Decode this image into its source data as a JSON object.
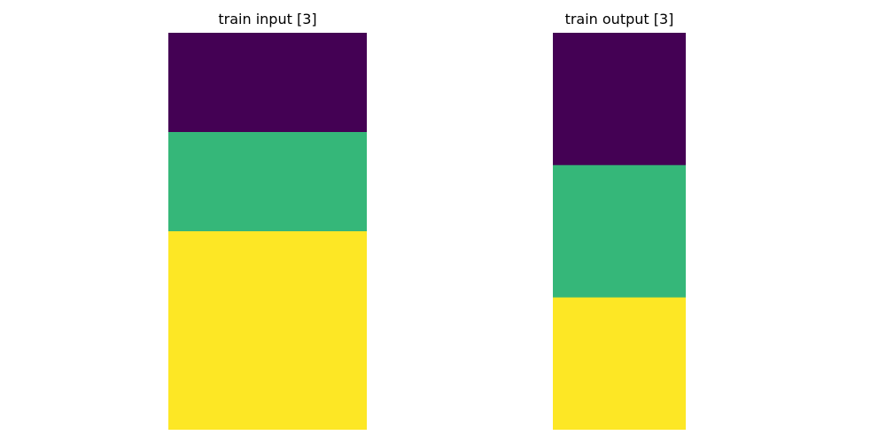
{
  "chart_data": [
    {
      "type": "heatmap",
      "title": "train input [3]",
      "rows": 4,
      "cols": 2,
      "cells": [
        [
          0,
          0
        ],
        [
          3,
          3
        ],
        [
          4,
          4
        ],
        [
          4,
          4
        ]
      ],
      "palette": {
        "0": "#440154",
        "3": "#35b779",
        "4": "#fde725"
      },
      "axes_visible": false
    },
    {
      "type": "heatmap",
      "title": "train output [3]",
      "rows": 3,
      "cols": 1,
      "cells": [
        [
          0
        ],
        [
          3
        ],
        [
          4
        ]
      ],
      "palette": {
        "0": "#440154",
        "3": "#35b779",
        "4": "#fde725"
      },
      "axes_visible": false
    }
  ]
}
